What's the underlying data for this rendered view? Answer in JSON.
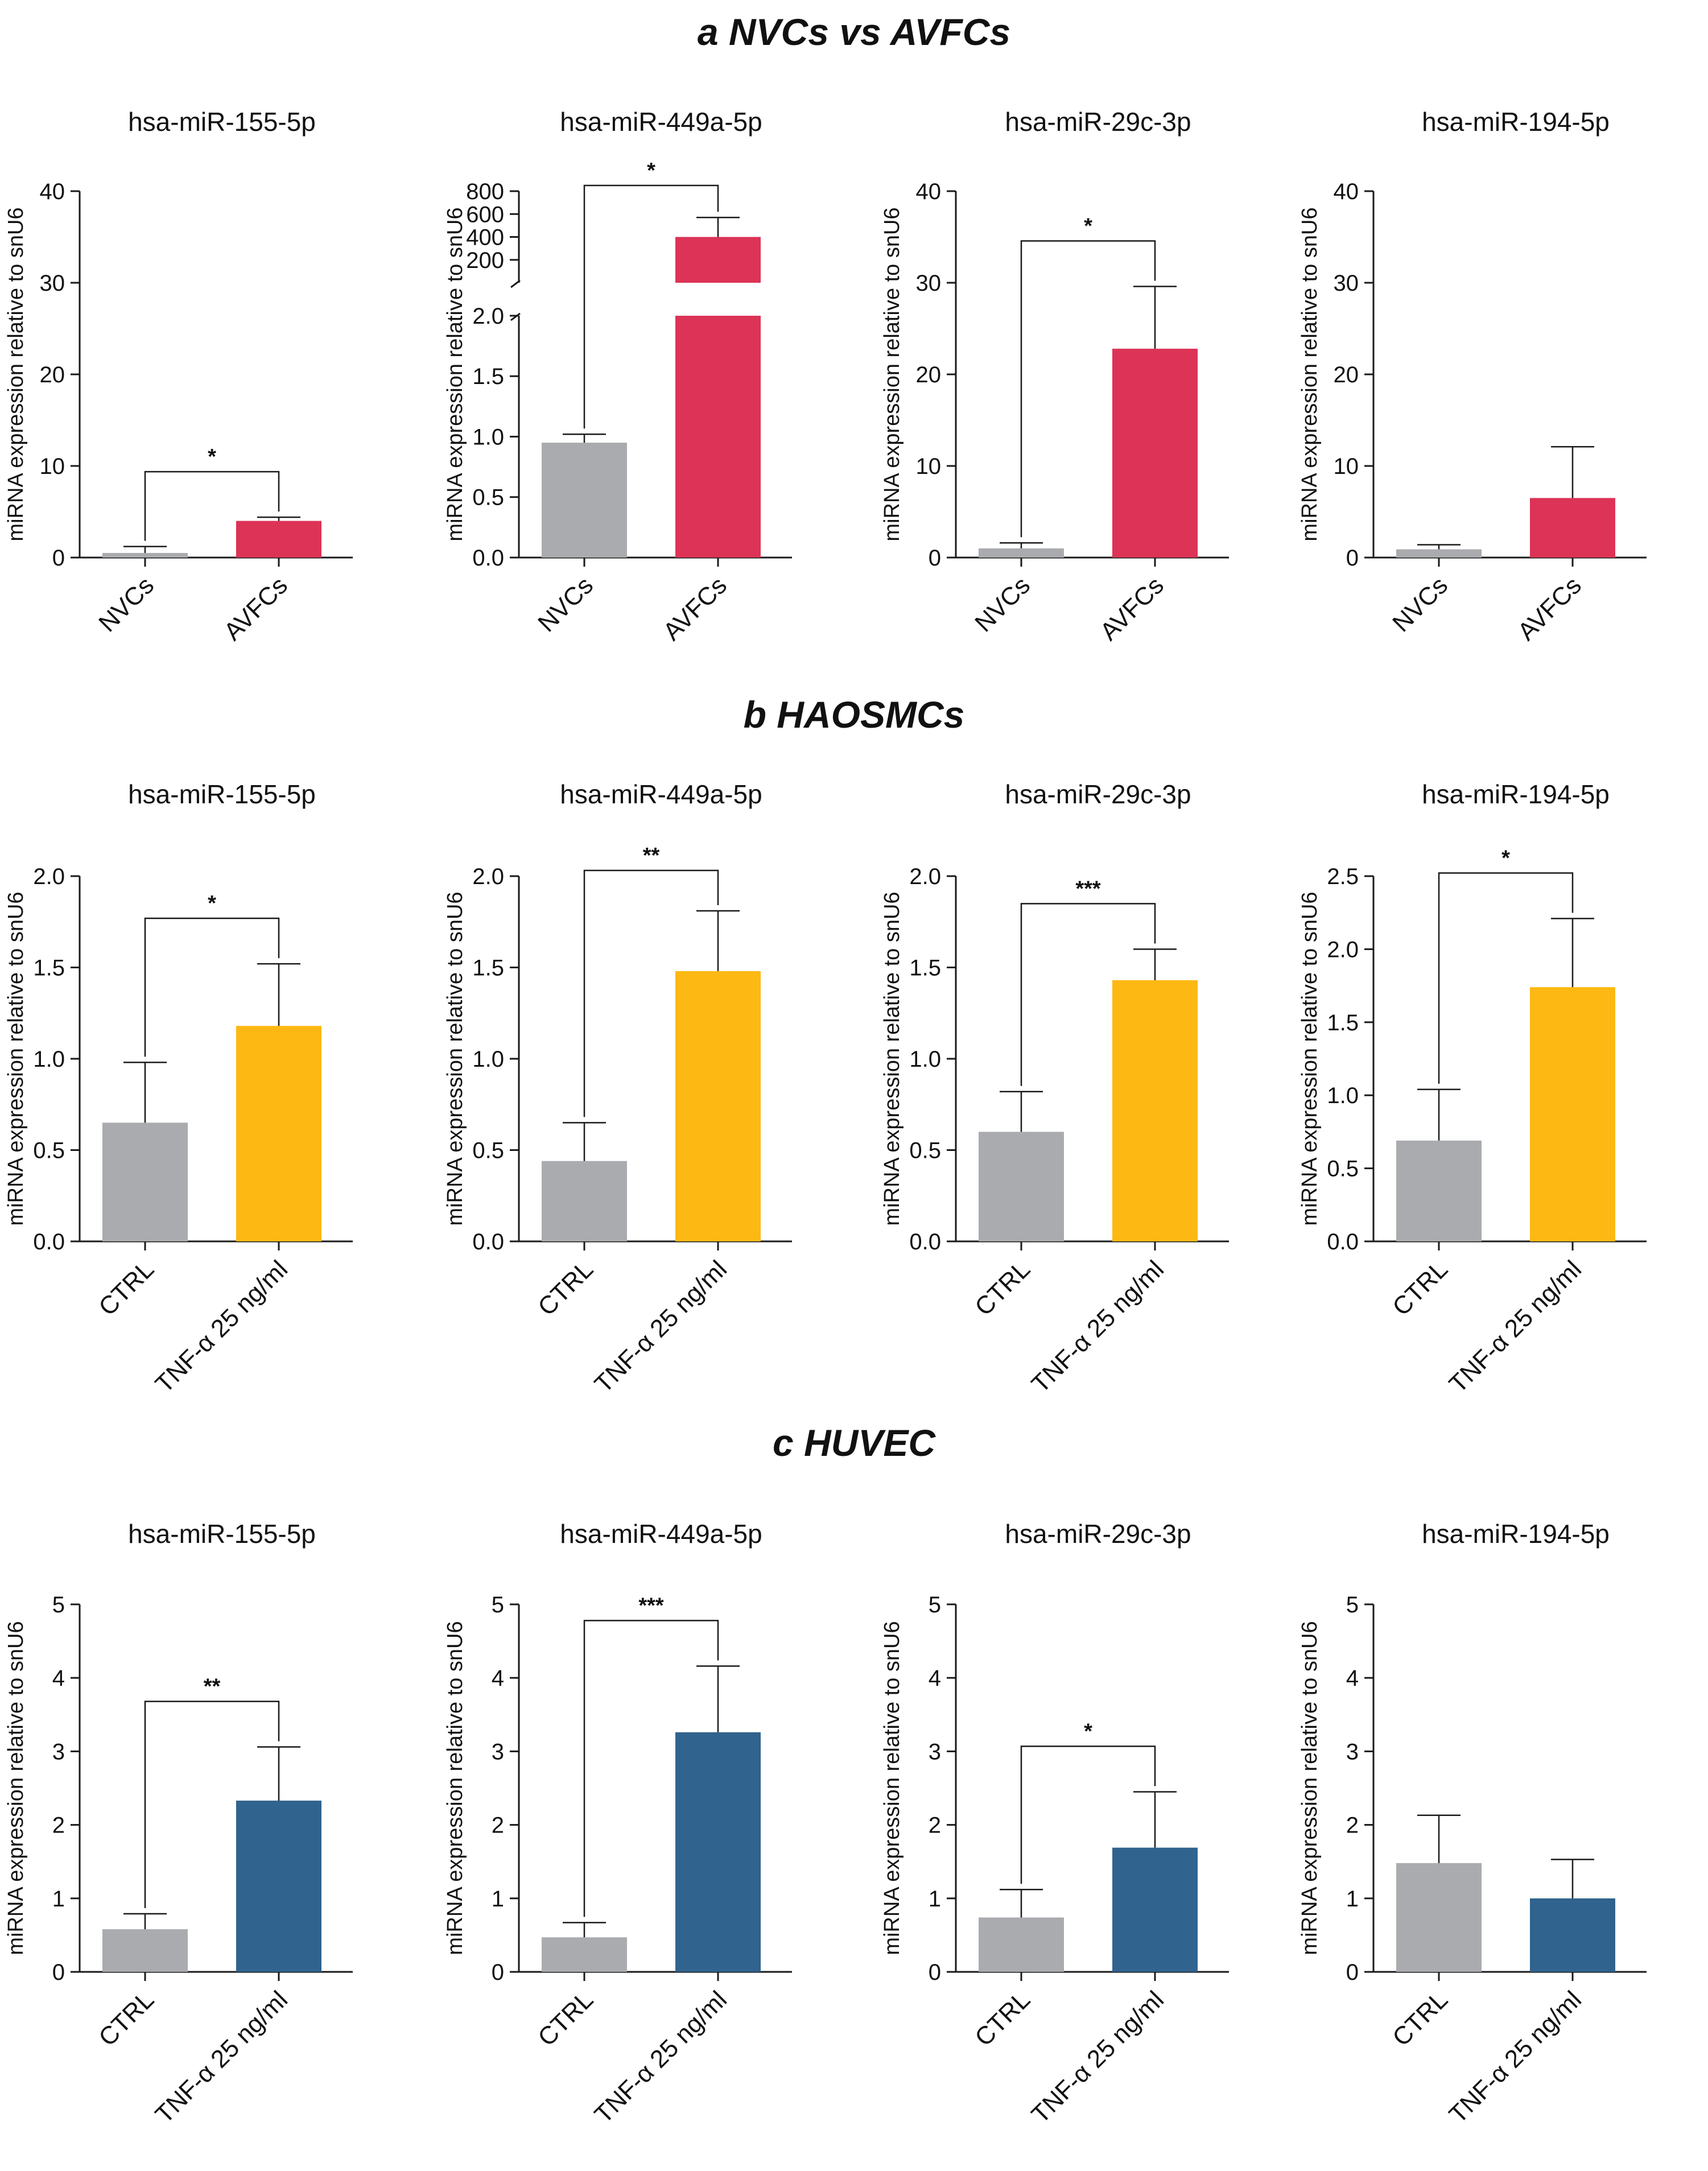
{
  "sections": [
    {
      "title": "a NVCs vs AVFCs"
    },
    {
      "title": "b HAOSMCs"
    },
    {
      "title": "c HUVEC"
    }
  ],
  "colors": {
    "control": "#a9abae",
    "avfc": "#dc3356",
    "haosmc": "#fdb813",
    "huvec": "#30638e",
    "axis": "#1a1a1a"
  },
  "chart_data": [
    {
      "type": "bar",
      "panel": "a",
      "title": "hsa-miR-155-5p",
      "ylabel": "miRNA expression relative to snU6",
      "categories": [
        "NVCs",
        "AVFCs"
      ],
      "values": [
        0.5,
        4.0
      ],
      "errors": [
        0.7,
        0.4
      ],
      "ylim": [
        0,
        40
      ],
      "yticks": [
        0,
        10,
        20,
        30,
        40
      ],
      "significance": "*",
      "colors": [
        "control",
        "avfc"
      ]
    },
    {
      "type": "bar",
      "panel": "a",
      "title": "hsa-miR-449a-5p",
      "ylabel": "miRNA expression relative to snU6",
      "categories": [
        "NVCs",
        "AVFCs"
      ],
      "values": [
        0.95,
        400
      ],
      "errors": [
        0.07,
        170
      ],
      "ylim": [
        0,
        800
      ],
      "yticks": [
        0.0,
        0.5,
        1.0,
        1.5,
        2.0,
        200,
        400,
        600,
        800
      ],
      "broken_axis": {
        "lower_range": [
          0,
          2.0
        ],
        "upper_range": [
          0,
          800
        ],
        "lower_ticks": [
          0.0,
          0.5,
          1.0,
          1.5,
          2.0
        ],
        "upper_ticks": [
          200,
          400,
          600,
          800
        ]
      },
      "significance": "*",
      "colors": [
        "control",
        "avfc"
      ]
    },
    {
      "type": "bar",
      "panel": "a",
      "title": "hsa-miR-29c-3p",
      "ylabel": "miRNA expression relative to snU6",
      "categories": [
        "NVCs",
        "AVFCs"
      ],
      "values": [
        1.0,
        22.8
      ],
      "errors": [
        0.6,
        6.8
      ],
      "ylim": [
        0,
        40
      ],
      "yticks": [
        0,
        10,
        20,
        30,
        40
      ],
      "significance": "*",
      "colors": [
        "control",
        "avfc"
      ]
    },
    {
      "type": "bar",
      "panel": "a",
      "title": "hsa-miR-194-5p",
      "ylabel": "miRNA expression relative to snU6",
      "categories": [
        "NVCs",
        "AVFCs"
      ],
      "values": [
        0.9,
        6.5
      ],
      "errors": [
        0.5,
        5.6
      ],
      "ylim": [
        0,
        40
      ],
      "yticks": [
        0,
        10,
        20,
        30,
        40
      ],
      "significance": "",
      "colors": [
        "control",
        "avfc"
      ]
    },
    {
      "type": "bar",
      "panel": "b",
      "title": "hsa-miR-155-5p",
      "ylabel": "miRNA expression relative to snU6",
      "categories": [
        "CTRL",
        "TNF-α 25 ng/ml"
      ],
      "values": [
        0.65,
        1.18
      ],
      "errors": [
        0.33,
        0.34
      ],
      "ylim": [
        0,
        2.0
      ],
      "yticks": [
        0.0,
        0.5,
        1.0,
        1.5,
        2.0
      ],
      "significance": "*",
      "colors": [
        "control",
        "haosmc"
      ]
    },
    {
      "type": "bar",
      "panel": "b",
      "title": "hsa-miR-449a-5p",
      "ylabel": "miRNA expression relative to snU6",
      "categories": [
        "CTRL",
        "TNF-α 25 ng/ml"
      ],
      "values": [
        0.44,
        1.48
      ],
      "errors": [
        0.21,
        0.33
      ],
      "ylim": [
        0,
        2.0
      ],
      "yticks": [
        0.0,
        0.5,
        1.0,
        1.5,
        2.0
      ],
      "significance": "**",
      "colors": [
        "control",
        "haosmc"
      ]
    },
    {
      "type": "bar",
      "panel": "b",
      "title": "hsa-miR-29c-3p",
      "ylabel": "miRNA expression relative to snU6",
      "categories": [
        "CTRL",
        "TNF-α 25 ng/ml"
      ],
      "values": [
        0.6,
        1.43
      ],
      "errors": [
        0.22,
        0.17
      ],
      "ylim": [
        0,
        2.0
      ],
      "yticks": [
        0.0,
        0.5,
        1.0,
        1.5,
        2.0
      ],
      "significance": "***",
      "colors": [
        "control",
        "haosmc"
      ]
    },
    {
      "type": "bar",
      "panel": "b",
      "title": "hsa-miR-194-5p",
      "ylabel": "miRNA expression relative to snU6",
      "categories": [
        "CTRL",
        "TNF-α 25 ng/ml"
      ],
      "values": [
        0.69,
        1.74
      ],
      "errors": [
        0.35,
        0.47
      ],
      "ylim": [
        0,
        2.5
      ],
      "yticks": [
        0.0,
        0.5,
        1.0,
        1.5,
        2.0,
        2.5
      ],
      "significance": "*",
      "colors": [
        "control",
        "haosmc"
      ]
    },
    {
      "type": "bar",
      "panel": "c",
      "title": "hsa-miR-155-5p",
      "ylabel": "miRNA expression relative to snU6",
      "categories": [
        "CTRL",
        "TNF-α 25 ng/ml"
      ],
      "values": [
        0.58,
        2.33
      ],
      "errors": [
        0.21,
        0.73
      ],
      "ylim": [
        0,
        5
      ],
      "yticks": [
        0,
        1,
        2,
        3,
        4,
        5
      ],
      "significance": "**",
      "colors": [
        "control",
        "huvec"
      ]
    },
    {
      "type": "bar",
      "panel": "c",
      "title": "hsa-miR-449a-5p",
      "ylabel": "miRNA expression relative to snU6",
      "categories": [
        "CTRL",
        "TNF-α 25 ng/ml"
      ],
      "values": [
        0.47,
        3.26
      ],
      "errors": [
        0.2,
        0.9
      ],
      "ylim": [
        0,
        5
      ],
      "yticks": [
        0,
        1,
        2,
        3,
        4,
        5
      ],
      "significance": "***",
      "colors": [
        "control",
        "huvec"
      ]
    },
    {
      "type": "bar",
      "panel": "c",
      "title": "hsa-miR-29c-3p",
      "ylabel": "miRNA expression relative to snU6",
      "categories": [
        "CTRL",
        "TNF-α 25 ng/ml"
      ],
      "values": [
        0.74,
        1.69
      ],
      "errors": [
        0.38,
        0.76
      ],
      "ylim": [
        0,
        5
      ],
      "yticks": [
        0,
        1,
        2,
        3,
        4,
        5
      ],
      "significance": "*",
      "colors": [
        "control",
        "huvec"
      ]
    },
    {
      "type": "bar",
      "panel": "c",
      "title": "hsa-miR-194-5p",
      "ylabel": "miRNA expression relative to snU6",
      "categories": [
        "CTRL",
        "TNF-α 25 ng/ml"
      ],
      "values": [
        1.48,
        1.0
      ],
      "errors": [
        0.65,
        0.53
      ],
      "ylim": [
        0,
        5
      ],
      "yticks": [
        0,
        1,
        2,
        3,
        4,
        5
      ],
      "significance": "",
      "colors": [
        "control",
        "huvec"
      ]
    }
  ]
}
